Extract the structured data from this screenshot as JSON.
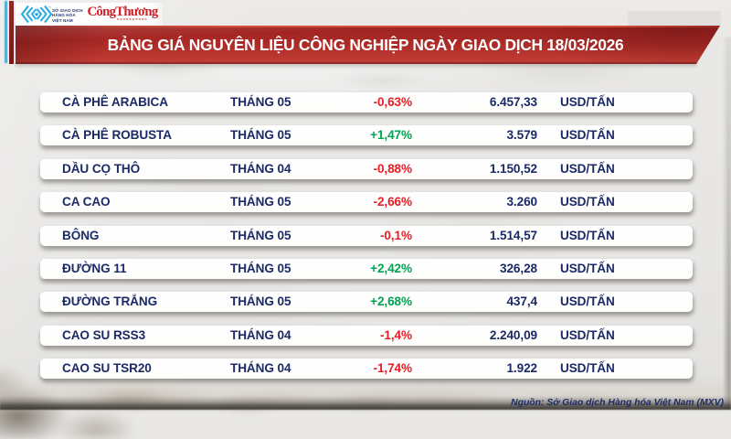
{
  "header": {
    "mxv_logo_text_lines": [
      "SỞ GIAO DỊCH",
      "HÀNG HÓA",
      "VIỆT NAM"
    ],
    "mxv_trademark": "™",
    "newspaper_logo_text": "CôngThương",
    "title": "BẢNG GIÁ NGUYÊN LIỆU CÔNG NGHIỆP NGÀY GIAO DỊCH 18/03/2026"
  },
  "table": {
    "rows": [
      {
        "name": "CÀ PHÊ ARABICA",
        "month": "THÁNG 05",
        "change": "-0,63%",
        "direction": "down",
        "price": "6.457,33",
        "unit": "USD/TẤN"
      },
      {
        "name": "CÀ PHÊ ROBUSTA",
        "month": "THÁNG 05",
        "change": "+1,47%",
        "direction": "up",
        "price": "3.579",
        "unit": "USD/TẤN"
      },
      {
        "name": "DẦU CỌ THÔ",
        "month": "THÁNG 04",
        "change": "-0,88%",
        "direction": "down",
        "price": "1.150,52",
        "unit": "USD/TẤN"
      },
      {
        "name": "CA CAO",
        "month": "THÁNG 05",
        "change": "-2,66%",
        "direction": "down",
        "price": "3.260",
        "unit": "USD/TẤN"
      },
      {
        "name": "BÔNG",
        "month": "THÁNG 05",
        "change": "-0,1%",
        "direction": "down",
        "price": "1.514,57",
        "unit": "USD/TẤN"
      },
      {
        "name": "ĐƯỜNG 11",
        "month": "THÁNG 05",
        "change": "+2,42%",
        "direction": "up",
        "price": "326,28",
        "unit": "USD/TẤN"
      },
      {
        "name": "ĐƯỜNG TRẮNG",
        "month": "THÁNG 05",
        "change": "+2,68%",
        "direction": "up",
        "price": "437,4",
        "unit": "USD/TẤN"
      },
      {
        "name": "CAO SU RSS3",
        "month": "THÁNG 04",
        "change": "-1,4%",
        "direction": "down",
        "price": "2.240,09",
        "unit": "USD/TẤN"
      },
      {
        "name": "CAO SU TSR20",
        "month": "THÁNG 04",
        "change": "-1,74%",
        "direction": "down",
        "price": "1.922",
        "unit": "USD/TẤN"
      }
    ]
  },
  "footer": {
    "source_note": "Nguồn: Sở Giao dịch Hàng hóa Việt Nam (MXV)"
  },
  "colors": {
    "negative_red": "#ec1c24",
    "positive_green": "#00a551",
    "navy_text": "#1b2a66",
    "banner_red": "#b02c28",
    "accent_cyan": "#2fb3e6",
    "accent_maroon": "#8a2022",
    "background_gray": "#e8e7e5"
  },
  "chart_data": {
    "type": "table",
    "title": "BẢNG GIÁ NGUYÊN LIỆU CÔNG NGHIỆP NGÀY GIAO DỊCH 18/03/2026",
    "columns": [
      "commodity",
      "contract_month",
      "percent_change",
      "price",
      "unit"
    ],
    "rows": [
      [
        "CÀ PHÊ ARABICA",
        "THÁNG 05",
        "-0,63%",
        "6.457,33",
        "USD/TẤN"
      ],
      [
        "CÀ PHÊ ROBUSTA",
        "THÁNG 05",
        "+1,47%",
        "3.579",
        "USD/TẤN"
      ],
      [
        "DẦU CỌ THÔ",
        "THÁNG 04",
        "-0,88%",
        "1.150,52",
        "USD/TẤN"
      ],
      [
        "CA CAO",
        "THÁNG 05",
        "-2,66%",
        "3.260",
        "USD/TẤN"
      ],
      [
        "BÔNG",
        "THÁNG 05",
        "-0,1%",
        "1.514,57",
        "USD/TẤN"
      ],
      [
        "ĐƯỜNG 11",
        "THÁNG 05",
        "+2,42%",
        "326,28",
        "USD/TẤN"
      ],
      [
        "ĐƯỜNG TRẮNG",
        "THÁNG 05",
        "+2,68%",
        "437,4",
        "USD/TẤN"
      ],
      [
        "CAO SU RSS3",
        "THÁNG 04",
        "-1,4%",
        "2.240,09",
        "USD/TẤN"
      ],
      [
        "CAO SU TSR20",
        "THÁNG 04",
        "-1,74%",
        "1.922",
        "USD/TẤN"
      ]
    ],
    "source": "Nguồn: Sở Giao dịch Hàng hóa Việt Nam (MXV)"
  }
}
